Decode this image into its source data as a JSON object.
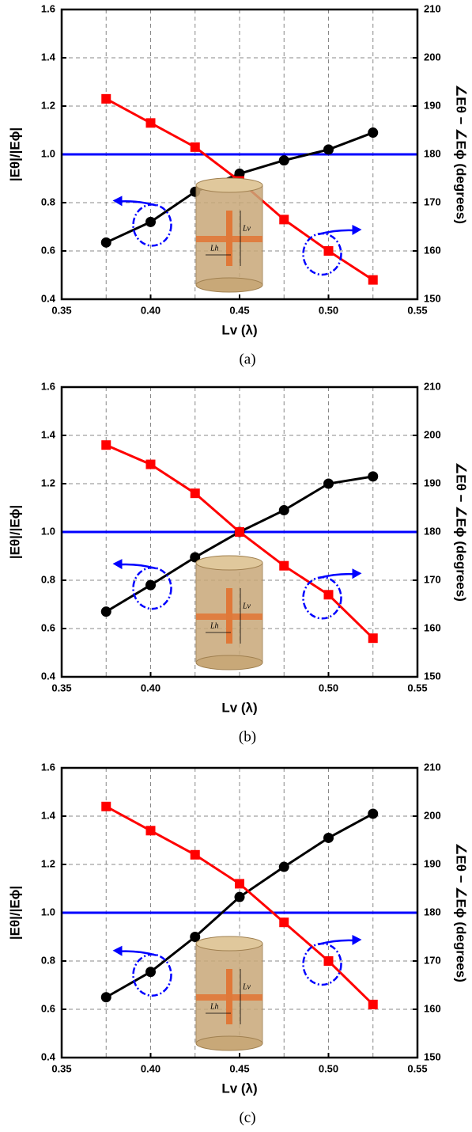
{
  "chart_data": [
    {
      "type": "line",
      "caption": "(a)",
      "xlabel": "Lv (λ)",
      "ylabel": "|Eθ|/|Eϕ|",
      "y2label": "∠Eθ − ∠Eϕ (degrees)",
      "xlim": [
        0.35,
        0.55
      ],
      "xticks": [
        0.35,
        {
          "value": 0.4,
          "label": "0.40"
        },
        0.45,
        {
          "value": 0.5,
          "label": "0.50"
        },
        0.55
      ],
      "xminor_ticks": [
        0.375,
        0.425,
        0.475,
        0.525
      ],
      "ylim": [
        0.4,
        1.6
      ],
      "yticks": [
        0.4,
        0.6,
        0.8,
        {
          "value": 1,
          "label": "1.0"
        },
        1.2,
        1.4,
        1.6
      ],
      "y2lim": [
        150,
        210
      ],
      "y2ticks": [
        150,
        160,
        170,
        180,
        190,
        200,
        210
      ],
      "grid": true,
      "x": [
        0.375,
        0.4,
        0.425,
        0.45,
        0.475,
        0.5,
        0.525
      ],
      "series": [
        {
          "color": "#000000",
          "marker": "circle",
          "values": [
            0.635,
            0.72,
            0.845,
            0.92,
            0.975,
            1.02,
            1.09
          ]
        },
        {
          "color": "#ff0000",
          "marker": "square",
          "axis": "y2",
          "values": [
            191.5,
            186.5,
            181.5,
            174.5,
            166.5,
            160,
            154
          ]
        }
      ],
      "hline": {
        "value": 1,
        "color": "#0000ff"
      },
      "inset_labels": [
        "Lv",
        "Lh"
      ]
    },
    {
      "type": "line",
      "caption": "(b)",
      "xlabel": "Lv (λ)",
      "ylabel": "|Eθ|/|Eϕ|",
      "y2label": "∠Eθ − ∠Eϕ (degrees)",
      "xlim": [
        0.35,
        0.55
      ],
      "xticks": [
        0.35,
        {
          "value": 0.4,
          "label": "0.40"
        },
        {
          "value": 0.5,
          "label": "0.50"
        },
        0.55
      ],
      "xminor_ticks": [
        0.375,
        0.425,
        0.45,
        0.475,
        0.525
      ],
      "ylim": [
        0.4,
        1.6
      ],
      "yticks": [
        0.4,
        0.6,
        0.8,
        {
          "value": 1,
          "label": "1.0"
        },
        1.2,
        1.4,
        1.6
      ],
      "y2lim": [
        150,
        210
      ],
      "y2ticks": [
        150,
        160,
        170,
        180,
        190,
        200,
        210
      ],
      "grid": true,
      "x": [
        0.375,
        0.4,
        0.425,
        0.45,
        0.475,
        0.5,
        0.525
      ],
      "series": [
        {
          "color": "#000000",
          "marker": "circle",
          "values": [
            0.67,
            0.78,
            0.895,
            1.0,
            1.09,
            1.2,
            1.23
          ]
        },
        {
          "color": "#ff0000",
          "marker": "square",
          "axis": "y2",
          "values": [
            198,
            194,
            188,
            180,
            173,
            167,
            158
          ]
        }
      ],
      "hline": {
        "value": 1,
        "color": "#0000ff"
      },
      "inset_labels": [
        "Lv",
        "Lh"
      ]
    },
    {
      "type": "line",
      "caption": "(c)",
      "xlabel": "Lv (λ)",
      "ylabel": "|Eθ|/|Eϕ|",
      "y2label": "∠Eθ − ∠Eϕ (degrees)",
      "xlim": [
        0.35,
        0.55
      ],
      "xticks": [
        0.35,
        {
          "value": 0.4,
          "label": "0.40"
        },
        0.45,
        {
          "value": 0.5,
          "label": "0.50"
        },
        0.55
      ],
      "xminor_ticks": [
        0.375,
        0.425,
        0.475,
        0.525
      ],
      "ylim": [
        0.4,
        1.6
      ],
      "yticks": [
        0.4,
        0.6,
        0.8,
        {
          "value": 1,
          "label": "1.0"
        },
        1.2,
        1.4,
        1.6
      ],
      "y2lim": [
        150,
        210
      ],
      "y2ticks": [
        150,
        160,
        170,
        180,
        190,
        200,
        210
      ],
      "grid": true,
      "x": [
        0.375,
        0.4,
        0.425,
        0.45,
        0.475,
        0.5,
        0.525
      ],
      "series": [
        {
          "color": "#000000",
          "marker": "circle",
          "values": [
            0.65,
            0.755,
            0.9,
            1.065,
            1.19,
            1.31,
            1.41
          ]
        },
        {
          "color": "#ff0000",
          "marker": "square",
          "axis": "y2",
          "values": [
            202,
            197,
            192,
            186,
            178,
            170,
            161
          ]
        }
      ],
      "hline": {
        "value": 1,
        "color": "#0000ff"
      },
      "inset_labels": [
        "Lv",
        "Lh"
      ]
    }
  ]
}
